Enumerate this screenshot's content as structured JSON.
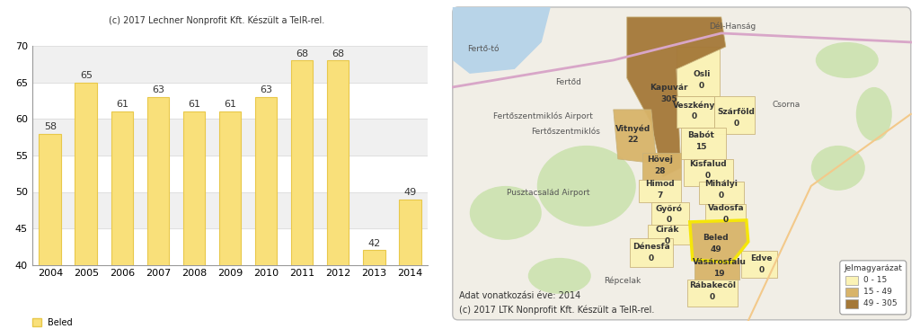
{
  "chart_data": {
    "type": "bar",
    "title": "(c) 2017 Lechner Nonprofit Kft. Készült a TeIR-rel.",
    "categories": [
      "2004",
      "2005",
      "2006",
      "2007",
      "2008",
      "2009",
      "2010",
      "2011",
      "2012",
      "2013",
      "2014"
    ],
    "series": [
      {
        "name": "Beled",
        "color": "#f9e07a",
        "values": [
          58,
          65,
          61,
          63,
          61,
          61,
          63,
          68,
          68,
          42,
          49
        ]
      }
    ],
    "ylim": [
      40,
      70
    ],
    "yticks": [
      40,
      45,
      50,
      55,
      60,
      65,
      70
    ],
    "grid": true,
    "data_labels": true,
    "legend": "lower left"
  },
  "map": {
    "notes": [
      "Adat vonatkozási éve: 2014",
      "(c) 2017 LTK Nonprofit Kft. Készült a TeIR-rel."
    ],
    "legend": {
      "title": "Jelmagyarázat",
      "classes": [
        {
          "label": "0 - 15",
          "min": 0,
          "max": 15,
          "color": "#fbf3b5"
        },
        {
          "label": "15 - 49",
          "min": 15,
          "max": 49,
          "color": "#d8b46a"
        },
        {
          "label": "49 - 305",
          "min": 49,
          "max": 305,
          "color": "#a47838"
        }
      ]
    },
    "highlight": "Beled",
    "settlements": [
      {
        "name": "Osli",
        "value": 0
      },
      {
        "name": "Kapuvár",
        "value": 305
      },
      {
        "name": "Veszkény",
        "value": 0
      },
      {
        "name": "Szárföld",
        "value": 0
      },
      {
        "name": "Vitnyéd",
        "value": 22
      },
      {
        "name": "Babót",
        "value": 15
      },
      {
        "name": "Hövej",
        "value": 28
      },
      {
        "name": "Kisfalud",
        "value": 0
      },
      {
        "name": "Himod",
        "value": 7
      },
      {
        "name": "Mihályi",
        "value": 0
      },
      {
        "name": "Vadosfa",
        "value": 0
      },
      {
        "name": "Győró",
        "value": 0
      },
      {
        "name": "Cirák",
        "value": 0
      },
      {
        "name": "Beled",
        "value": 49
      },
      {
        "name": "Dénesfa",
        "value": 0
      },
      {
        "name": "Vásárosfalu",
        "value": 19
      },
      {
        "name": "Edve",
        "value": 0
      },
      {
        "name": "Rábakecöl",
        "value": 0
      }
    ],
    "places": [
      "Fertő-tó",
      "Fertőd",
      "Fertőszentmiklós",
      "Fertőszentmiklós Airport",
      "Pusztacsalád Airport",
      "Csorna",
      "Répcelak",
      "Dél-Hanság"
    ]
  }
}
